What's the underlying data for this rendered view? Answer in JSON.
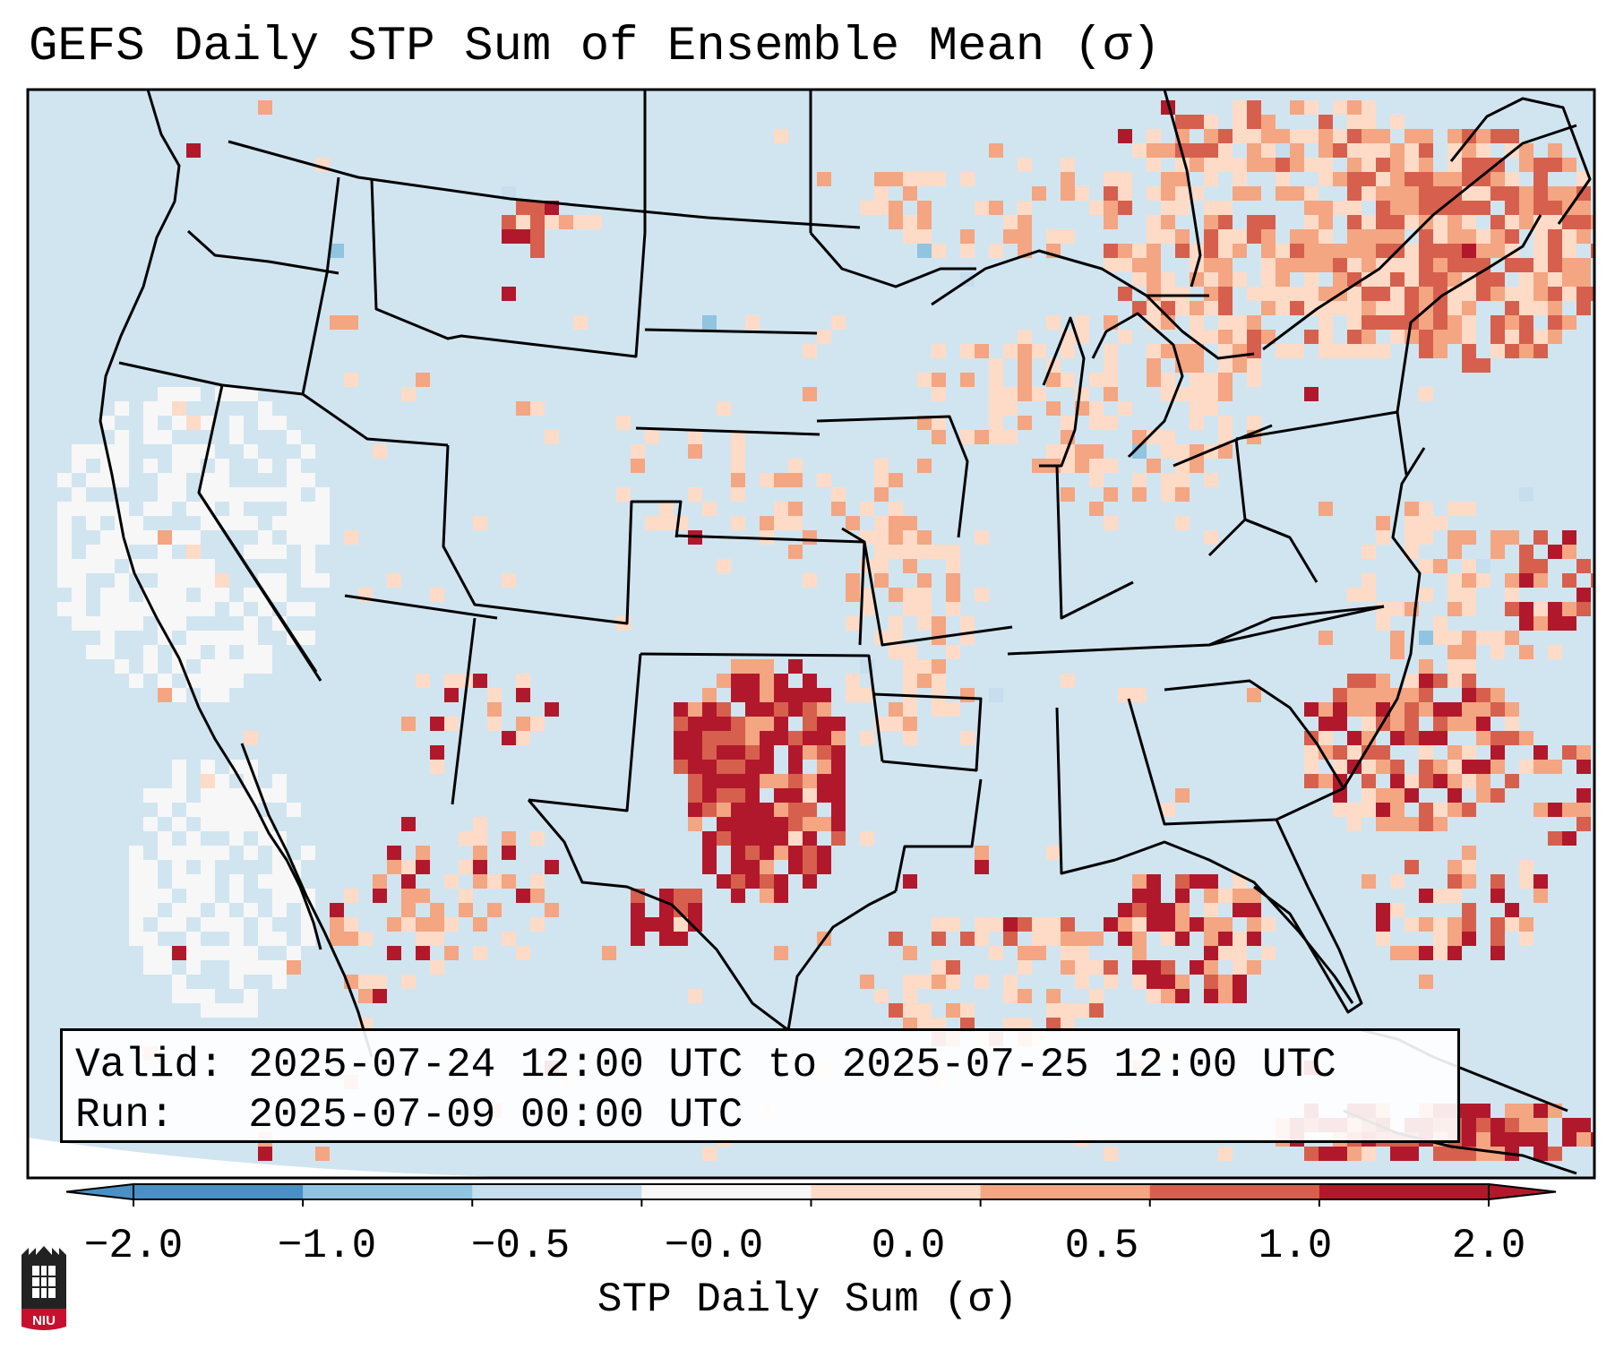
{
  "title": "GEFS Daily STP Sum of Ensemble Mean (σ)",
  "info": {
    "valid_line": "Valid: 2025-07-24 12:00 UTC to 2025-07-25 12:00 UTC",
    "run_line": "Run:   2025-07-09 00:00 UTC"
  },
  "colorbar": {
    "label": "STP Daily Sum (σ)",
    "ticks": [
      "−2.0",
      "−1.0",
      "−0.5",
      "−0.0",
      "0.0",
      "0.5",
      "1.0",
      "2.0"
    ],
    "bin_colors": [
      "#4a90c4",
      "#90c4e0",
      "#c6deee",
      "#f7f7f7",
      "#fddbc7",
      "#f4a582",
      "#d6604d",
      "#b2182b"
    ],
    "ocean_color": "#d1e5f0",
    "land_neutral_color": "#d1e5f0"
  },
  "logo": {
    "text": "NIU"
  },
  "map": {
    "region": "CONUS",
    "highlights": [
      "Texas Panhandle / western Oklahoma maximum >2.0σ",
      "Great Lakes / New England elevated 0.5–1.0σ",
      "Gulf of Mexico and western Atlantic scattered 0.0–2.0σ"
    ]
  }
}
